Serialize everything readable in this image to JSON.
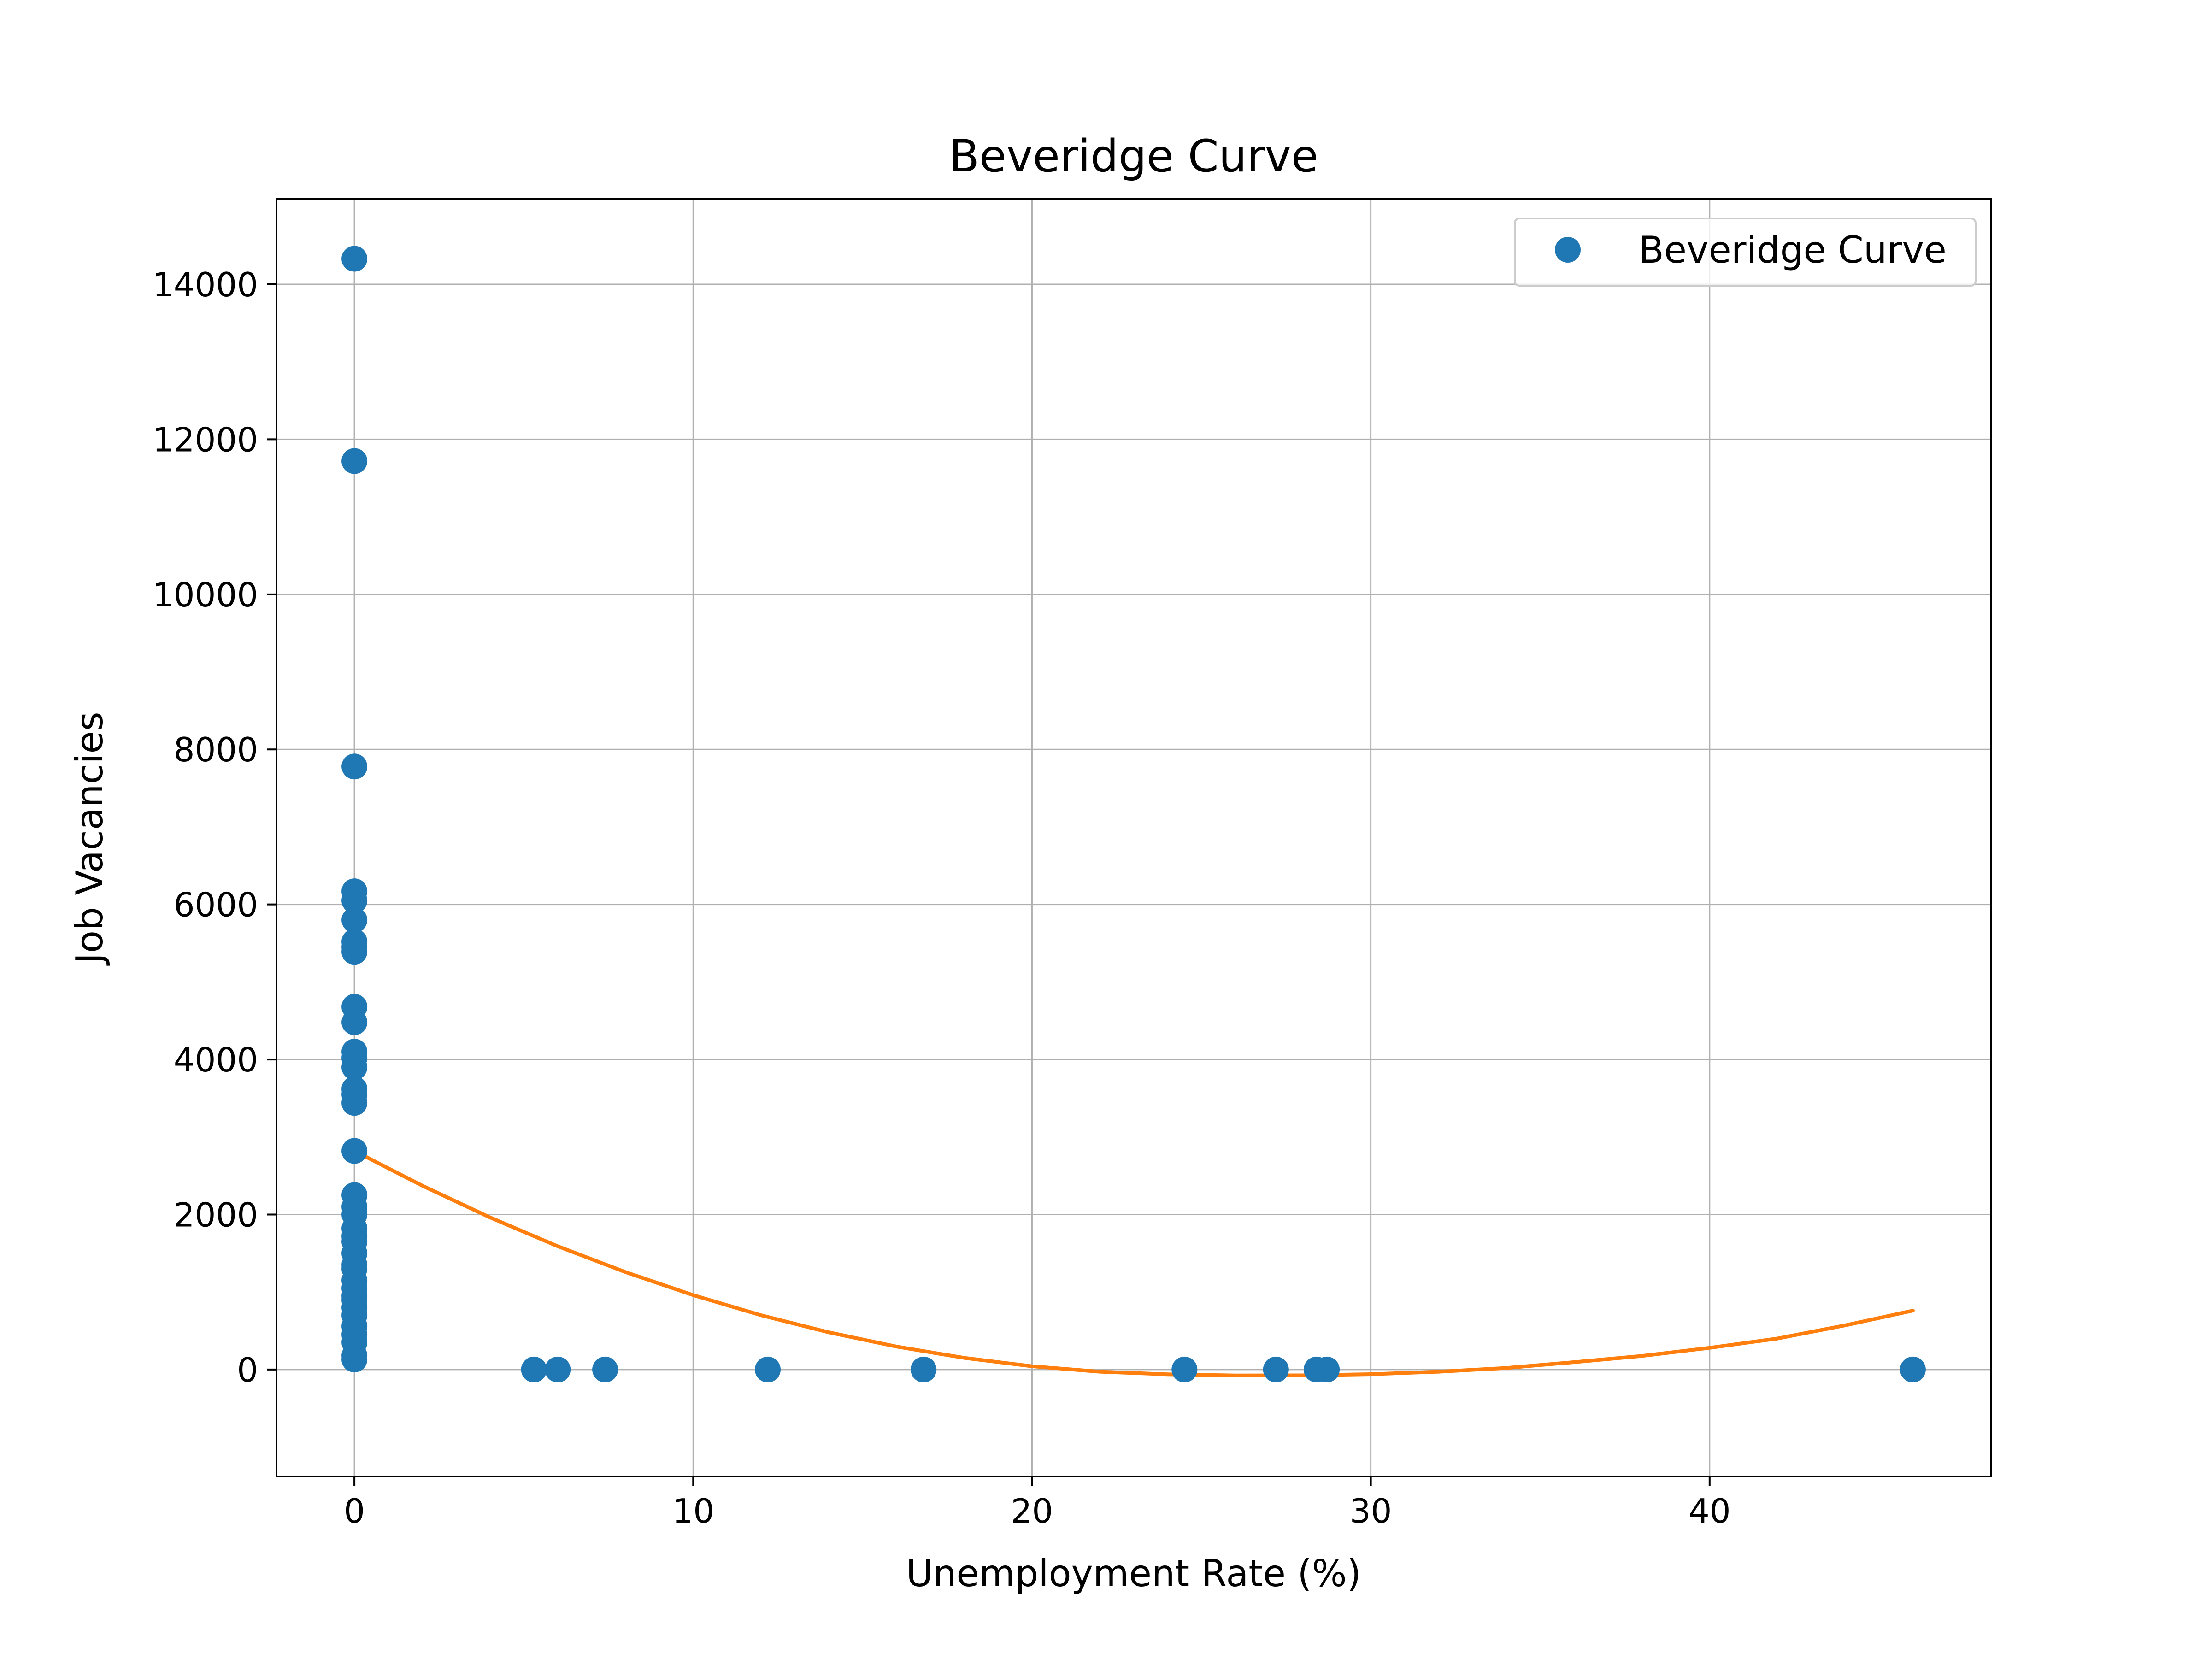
{
  "chart_data": {
    "type": "scatter",
    "title": "Beveridge Curve",
    "xlabel": "Unemployment Rate (%)",
    "ylabel": "Job Vacancies",
    "xlim": [
      -2.3,
      48.3
    ],
    "ylim": [
      -1380,
      15100
    ],
    "xticks": [
      0,
      10,
      20,
      30,
      40
    ],
    "yticks": [
      0,
      2000,
      4000,
      6000,
      8000,
      10000,
      12000,
      14000
    ],
    "grid": true,
    "legend": {
      "position": "top-right",
      "entries": [
        "Beveridge Curve"
      ]
    },
    "colors": {
      "points": "#1f77b4",
      "fit": "#ff7f0e",
      "grid": "#b0b0b0"
    },
    "series": [
      {
        "name": "Beveridge Curve",
        "kind": "points",
        "x": [
          0,
          0,
          0,
          0,
          0,
          0,
          0,
          0,
          0,
          0,
          0,
          0,
          0,
          0,
          0,
          0,
          0,
          0,
          0,
          0,
          0,
          0,
          0,
          0,
          0,
          0,
          0,
          0,
          0,
          0,
          0,
          0,
          0,
          0,
          0,
          0,
          0,
          0,
          5.3,
          6.0,
          7.4,
          12.2,
          16.8,
          24.5,
          27.2,
          28.4,
          28.7,
          46.0
        ],
        "y": [
          14330,
          11720,
          7780,
          6170,
          6050,
          5800,
          5520,
          5390,
          4680,
          4480,
          4100,
          3900,
          3620,
          3440,
          2820,
          2250,
          2100,
          1820,
          1720,
          1500,
          1300,
          1150,
          1050,
          950,
          800,
          700,
          560,
          450,
          350,
          180,
          130,
          1350,
          1650,
          2000,
          4020,
          5450,
          3550,
          900,
          0,
          0,
          0,
          0,
          0,
          0,
          0,
          0,
          0,
          0
        ]
      },
      {
        "name": "",
        "kind": "fit-line",
        "x": [
          0,
          2,
          4,
          6,
          8,
          10,
          12,
          14,
          16,
          18,
          20,
          22,
          24,
          26,
          28,
          30,
          32,
          34,
          36,
          38,
          40,
          42,
          44,
          46
        ],
        "y": [
          2820,
          2373,
          1963,
          1591,
          1257,
          960,
          701,
          480,
          296,
          150,
          42,
          -28,
          -62,
          -76,
          -75,
          -60,
          -28,
          20,
          95,
          175,
          280,
          400,
          570,
          760
        ]
      }
    ]
  }
}
